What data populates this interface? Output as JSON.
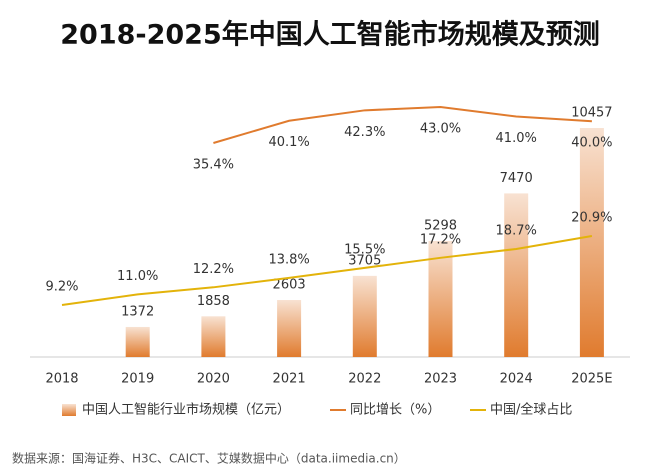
{
  "chart_data": {
    "type": "bar-line",
    "title": "2018-2025年中国人工智能市场规模及预测",
    "categories": [
      "2018",
      "2019",
      "2020",
      "2021",
      "2022",
      "2023",
      "2024",
      "2025E"
    ],
    "series": [
      {
        "name": "中国人工智能行业市场规模（亿元）",
        "type": "bar",
        "color": "#e07b2e",
        "values": [
          null,
          1372,
          1858,
          2603,
          3705,
          5298,
          7470,
          10457
        ]
      },
      {
        "name": "同比增长（%）",
        "type": "line",
        "color": "#e07b2e",
        "values": [
          null,
          null,
          35.4,
          40.1,
          42.3,
          43.0,
          41.0,
          40.0
        ],
        "value_labels": [
          null,
          null,
          "35.4%",
          "40.1%",
          "42.3%",
          "43.0%",
          "41.0%",
          "40.0%"
        ]
      },
      {
        "name": "中国/全球占比",
        "type": "line",
        "color": "#e3b30a",
        "values": [
          9.2,
          11.0,
          12.2,
          13.8,
          15.5,
          17.2,
          18.7,
          20.9
        ],
        "value_labels": [
          "9.2%",
          "11.0%",
          "12.2%",
          "13.8%",
          "15.5%",
          "17.2%",
          "18.7%",
          "20.9%"
        ]
      }
    ],
    "source": "数据来源：国海证券、H3C、CAICT、艾媒数据中心（data.iimedia.cn）"
  }
}
